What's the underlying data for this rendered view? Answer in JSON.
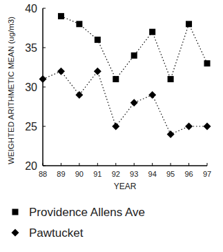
{
  "chart_data": {
    "type": "line",
    "x_label": "YEAR",
    "y_label": "WEIGHTED ARITHMETIC MEAN (ug/m3)",
    "x": [
      88,
      89,
      90,
      91,
      92,
      93,
      94,
      95,
      96,
      97
    ],
    "xlim": [
      88,
      97
    ],
    "xticks": [
      88,
      89,
      90,
      91,
      92,
      93,
      94,
      95,
      96,
      97
    ],
    "ylim": [
      20,
      40
    ],
    "yticks": [
      20,
      25,
      30,
      35,
      40
    ],
    "grid": false,
    "legend": "bottom",
    "series": [
      {
        "name": "Providence Allens Ave",
        "color": "#000000",
        "marker": "square",
        "line_style": "dotted",
        "values": [
          null,
          39,
          38,
          36,
          31,
          34,
          37,
          31,
          38,
          33
        ]
      },
      {
        "name": "Pawtucket",
        "color": "#000000",
        "marker": "diamond",
        "line_style": "dotted",
        "values": [
          31,
          32,
          29,
          32,
          25,
          28,
          29,
          24,
          25,
          25
        ]
      }
    ]
  }
}
